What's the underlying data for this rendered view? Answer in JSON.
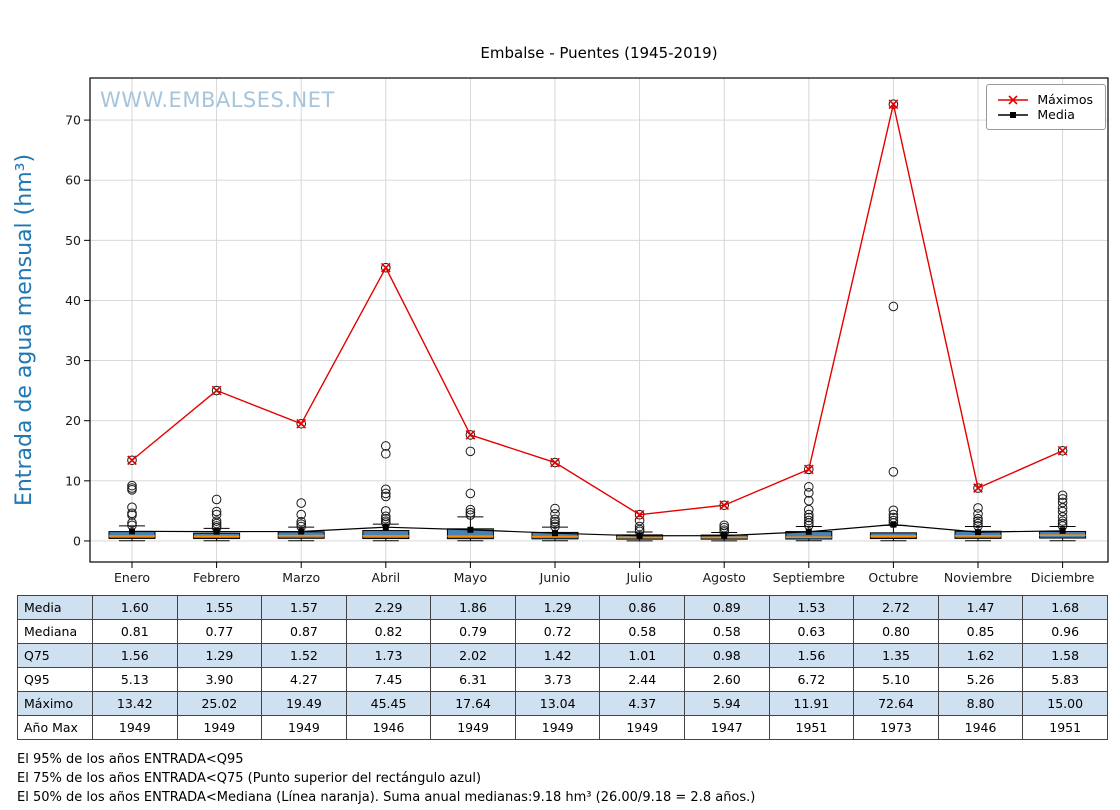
{
  "title": "Embalse - Puentes (1945-2019)",
  "watermark": "WWW.EMBALSES.NET",
  "colors": {
    "maximos_line": "#e50000",
    "media_line": "#000000",
    "box_fill": "#4682b4",
    "median_line": "#ff8c00",
    "grid": "#d3d3d3",
    "axis": "#000000",
    "ylabel_text": "#1f77b4",
    "watermark_text": "#a6c5dd",
    "table_highlight": "#cfe0f1"
  },
  "chart_data": {
    "type": "boxplot+line",
    "title": "Embalse - Puentes (1945-2019)",
    "ylabel": "Entrada de agua mensual (hm³)",
    "xlabel": "",
    "ylim": [
      -3.5,
      77
    ],
    "yticks": [
      0,
      10,
      20,
      30,
      40,
      50,
      60,
      70
    ],
    "grid": true,
    "legend_position": "upper right",
    "categories": [
      "Enero",
      "Febrero",
      "Marzo",
      "Abril",
      "Mayo",
      "Junio",
      "Julio",
      "Agosto",
      "Septiembre",
      "Octubre",
      "Noviembre",
      "Diciembre"
    ],
    "series": [
      {
        "name": "Máximos",
        "type": "line",
        "marker": "x",
        "color": "#e50000",
        "values": [
          13.42,
          25.02,
          19.49,
          45.45,
          17.64,
          13.04,
          4.37,
          5.94,
          11.91,
          72.64,
          8.8,
          15.0
        ]
      },
      {
        "name": "Media",
        "type": "line",
        "marker": "square",
        "color": "#000000",
        "values": [
          1.6,
          1.55,
          1.57,
          2.29,
          1.86,
          1.29,
          0.86,
          0.89,
          1.53,
          2.72,
          1.47,
          1.68
        ]
      }
    ],
    "boxplot": {
      "fill_color": "#4682b4",
      "median_color": "#ff8c00",
      "median": [
        0.81,
        0.77,
        0.87,
        0.82,
        0.79,
        0.72,
        0.58,
        0.58,
        0.63,
        0.8,
        0.85,
        0.96
      ],
      "q25_est": [
        0.42,
        0.4,
        0.44,
        0.4,
        0.38,
        0.35,
        0.3,
        0.3,
        0.32,
        0.4,
        0.43,
        0.48
      ],
      "q75": [
        1.56,
        1.29,
        1.52,
        1.73,
        2.02,
        1.42,
        1.01,
        0.98,
        1.56,
        1.35,
        1.62,
        1.58
      ],
      "whisker_low_est": [
        0.03,
        0.03,
        0.03,
        0.03,
        0.03,
        0.03,
        0.02,
        0.02,
        0.03,
        0.03,
        0.03,
        0.03
      ],
      "whisker_high_est": [
        2.5,
        2.1,
        2.3,
        2.8,
        4.0,
        2.3,
        1.5,
        1.4,
        2.4,
        2.6,
        2.4,
        2.4
      ],
      "outliers": [
        [
          2.6,
          3.0,
          4.3,
          4.6,
          5.6,
          8.5,
          8.8,
          9.2,
          13.42
        ],
        [
          2.2,
          2.5,
          2.9,
          3.3,
          4.4,
          4.9,
          6.9,
          25.02
        ],
        [
          2.4,
          2.8,
          3.2,
          4.4,
          6.3,
          19.49
        ],
        [
          3.0,
          3.3,
          3.7,
          4.1,
          5.0,
          7.4,
          7.9,
          8.6,
          14.5,
          15.8,
          45.45
        ],
        [
          4.3,
          4.7,
          5.2,
          7.9,
          14.9,
          17.64
        ],
        [
          2.4,
          2.8,
          3.2,
          3.6,
          4.5,
          5.4,
          13.04
        ],
        [
          1.6,
          1.9,
          2.4,
          3.4,
          4.37
        ],
        [
          1.5,
          1.8,
          2.2,
          2.6,
          5.94
        ],
        [
          2.6,
          3.0,
          3.4,
          3.9,
          4.4,
          5.2,
          6.7,
          8.0,
          9.0,
          11.91
        ],
        [
          3.0,
          3.4,
          3.9,
          4.4,
          5.1,
          11.5,
          39.0,
          72.64
        ],
        [
          2.5,
          2.9,
          3.3,
          3.7,
          4.5,
          5.5,
          8.8
        ],
        [
          2.5,
          2.9,
          3.3,
          4.0,
          4.9,
          5.5,
          6.4,
          7.0,
          7.6,
          15.0
        ]
      ]
    }
  },
  "legend": [
    {
      "label": "Máximos",
      "color": "#e50000",
      "marker": "x"
    },
    {
      "label": "Media",
      "color": "#000000",
      "marker": "square"
    }
  ],
  "table": {
    "columns": [
      "Enero",
      "Febrero",
      "Marzo",
      "Abril",
      "Mayo",
      "Junio",
      "Julio",
      "Agosto",
      "Septiembre",
      "Octubre",
      "Noviembre",
      "Diciembre"
    ],
    "rows": [
      {
        "label": "Media",
        "highlight": true,
        "values": [
          "1.60",
          "1.55",
          "1.57",
          "2.29",
          "1.86",
          "1.29",
          "0.86",
          "0.89",
          "1.53",
          "2.72",
          "1.47",
          "1.68"
        ]
      },
      {
        "label": "Mediana",
        "highlight": false,
        "values": [
          "0.81",
          "0.77",
          "0.87",
          "0.82",
          "0.79",
          "0.72",
          "0.58",
          "0.58",
          "0.63",
          "0.80",
          "0.85",
          "0.96"
        ]
      },
      {
        "label": "Q75",
        "highlight": true,
        "values": [
          "1.56",
          "1.29",
          "1.52",
          "1.73",
          "2.02",
          "1.42",
          "1.01",
          "0.98",
          "1.56",
          "1.35",
          "1.62",
          "1.58"
        ]
      },
      {
        "label": "Q95",
        "highlight": false,
        "values": [
          "5.13",
          "3.90",
          "4.27",
          "7.45",
          "6.31",
          "3.73",
          "2.44",
          "2.60",
          "6.72",
          "5.10",
          "5.26",
          "5.83"
        ]
      },
      {
        "label": "Máximo",
        "highlight": true,
        "values": [
          "13.42",
          "25.02",
          "19.49",
          "45.45",
          "17.64",
          "13.04",
          "4.37",
          "5.94",
          "11.91",
          "72.64",
          "8.80",
          "15.00"
        ]
      },
      {
        "label": "Año Max",
        "highlight": false,
        "values": [
          "1949",
          "1949",
          "1949",
          "1946",
          "1949",
          "1949",
          "1949",
          "1947",
          "1951",
          "1973",
          "1946",
          "1951"
        ]
      }
    ]
  },
  "footnotes": [
    "El 95% de los años ENTRADA<Q95",
    "El 75% de los años ENTRADA<Q75 (Punto superior del rectángulo azul)",
    "El 50% de los años ENTRADA<Mediana (Línea naranja). Suma anual medianas:9.18 hm³ (26.00/9.18 = 2.8 años.)"
  ]
}
